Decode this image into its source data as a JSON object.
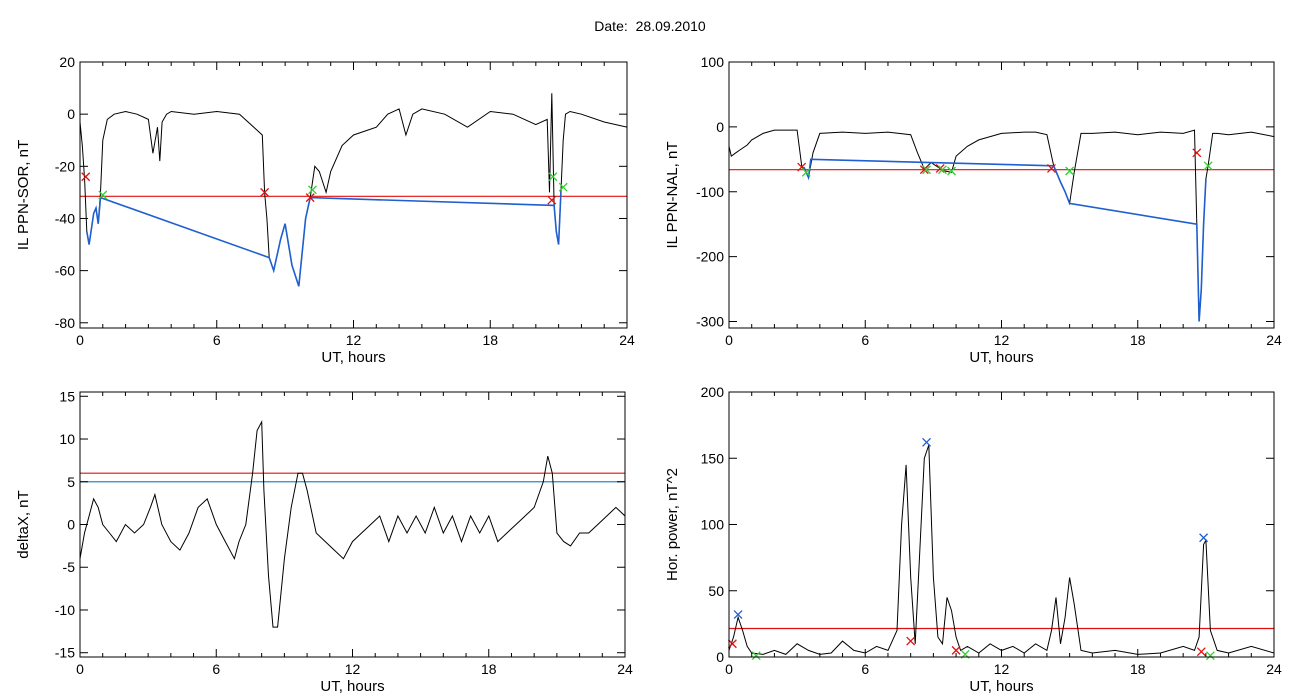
{
  "page": {
    "title": "Date:  28.09.2010"
  },
  "chart_data": [
    {
      "type": "line",
      "panel": "top-left",
      "xlabel": "UT, hours",
      "ylabel": "IL PPN-SOR, nT",
      "xlim": [
        0,
        24
      ],
      "ylim": [
        -82,
        20
      ],
      "xticks": [
        0,
        6,
        12,
        18,
        24
      ],
      "yticks": [
        20,
        0,
        -20,
        -40,
        -60,
        -80
      ],
      "series": [
        {
          "color": "#000000",
          "x": [
            0,
            0.1,
            0.2,
            0.3,
            0.4,
            0.5,
            0.6,
            0.7,
            0.8,
            0.9,
            1.0,
            1.2,
            1.5,
            2.0,
            2.5,
            3.0,
            3.2,
            3.4,
            3.5,
            3.6,
            3.8,
            4.0,
            5.0,
            6.0,
            7.0,
            8.0,
            8.1,
            8.2,
            8.3,
            8.5,
            8.8,
            9.0,
            9.3,
            9.6,
            9.9,
            10.1,
            10.3,
            10.5,
            10.8,
            11.0,
            11.5,
            12.0,
            13.0,
            13.5,
            14.0,
            14.3,
            14.6,
            15.0,
            16.0,
            17.0,
            18.0,
            19.0,
            20.0,
            20.5,
            20.6,
            20.7,
            20.8,
            20.9,
            21.0,
            21.1,
            21.2,
            21.3,
            21.5,
            22.0,
            23.0,
            24.0
          ],
          "y": [
            -3,
            -12,
            -25,
            -45,
            -50,
            -44,
            -38,
            -36,
            -42,
            -30,
            -10,
            -2,
            0,
            1,
            0,
            -2,
            -15,
            -5,
            -18,
            -3,
            0,
            1,
            0,
            1,
            0,
            -8,
            -30,
            -40,
            -55,
            -60,
            -48,
            -42,
            -58,
            -66,
            -40,
            -32,
            -20,
            -22,
            -30,
            -22,
            -12,
            -8,
            -5,
            0,
            2,
            -8,
            0,
            2,
            0,
            -5,
            1,
            0,
            -4,
            -2,
            -30,
            8,
            -35,
            -45,
            -50,
            -30,
            -10,
            0,
            1,
            0,
            -3,
            -5
          ]
        },
        {
          "color": "#1f5fd0",
          "x": [
            0.3,
            0.4,
            0.5,
            0.6,
            0.7,
            0.8,
            0.9,
            8.3,
            8.5,
            8.8,
            9.0,
            9.3,
            9.6,
            9.9,
            10.1,
            20.8,
            20.9,
            21.0,
            21.1
          ],
          "y": [
            -45,
            -50,
            -44,
            -38,
            -36,
            -42,
            -32,
            -55,
            -60,
            -48,
            -42,
            -58,
            -66,
            -40,
            -32,
            -35,
            -45,
            -50,
            -30
          ]
        }
      ],
      "hlines": [
        {
          "y": -31.5,
          "color": "#e01010"
        }
      ],
      "markers": [
        {
          "x": 0.25,
          "y": -24,
          "color": "#e01010"
        },
        {
          "x": 1.0,
          "y": -31,
          "color": "#30d030"
        },
        {
          "x": 8.1,
          "y": -30,
          "color": "#e01010"
        },
        {
          "x": 10.1,
          "y": -32,
          "color": "#e01010"
        },
        {
          "x": 10.2,
          "y": -29,
          "color": "#30d030"
        },
        {
          "x": 20.7,
          "y": -33,
          "color": "#e01010"
        },
        {
          "x": 20.75,
          "y": -24,
          "color": "#30d030"
        },
        {
          "x": 21.2,
          "y": -28,
          "color": "#30d030"
        }
      ]
    },
    {
      "type": "line",
      "panel": "top-right",
      "xlabel": "UT, hours",
      "ylabel": "IL PPN-NAL, nT",
      "xlim": [
        0,
        24
      ],
      "ylim": [
        -310,
        100
      ],
      "xticks": [
        0,
        6,
        12,
        18,
        24
      ],
      "yticks": [
        100,
        0,
        -100,
        -200,
        -300
      ],
      "series": [
        {
          "color": "#000000",
          "x": [
            0,
            0.1,
            0.3,
            0.5,
            0.8,
            1.0,
            1.5,
            2.0,
            2.5,
            3.0,
            3.2,
            3.4,
            3.5,
            3.7,
            4.0,
            5.0,
            6.0,
            7.0,
            8.0,
            8.3,
            8.6,
            8.9,
            9.2,
            9.5,
            9.8,
            10.0,
            10.5,
            11.0,
            12.0,
            13.0,
            13.5,
            14.0,
            14.3,
            14.6,
            14.8,
            15.0,
            15.2,
            15.5,
            16.0,
            17.0,
            18.0,
            19.0,
            20.0,
            20.5,
            20.6,
            20.7,
            20.8,
            20.9,
            21.0,
            21.1,
            21.3,
            21.5,
            22.0,
            23.0,
            24.0
          ],
          "y": [
            -30,
            -45,
            -40,
            -35,
            -28,
            -20,
            -10,
            -5,
            -5,
            -5,
            -60,
            -70,
            -78,
            -40,
            -10,
            -8,
            -10,
            -8,
            -12,
            -40,
            -65,
            -55,
            -62,
            -68,
            -70,
            -45,
            -30,
            -20,
            -10,
            -8,
            -8,
            -12,
            -60,
            -85,
            -100,
            -118,
            -70,
            -10,
            -10,
            -8,
            -12,
            -8,
            -10,
            -5,
            -150,
            -300,
            -250,
            -150,
            -80,
            -60,
            -10,
            -10,
            -12,
            -8,
            -15
          ]
        },
        {
          "color": "#1f5fd0",
          "x": [
            3.3,
            3.4,
            3.5,
            3.6,
            14.3,
            14.6,
            14.8,
            15.0,
            20.6,
            20.7,
            20.8,
            20.9,
            21.0
          ],
          "y": [
            -62,
            -70,
            -78,
            -50,
            -60,
            -85,
            -100,
            -118,
            -150,
            -300,
            -250,
            -150,
            -80
          ]
        }
      ],
      "hlines": [
        {
          "y": -66,
          "color": "#e01010"
        }
      ],
      "markers": [
        {
          "x": 3.2,
          "y": -62,
          "color": "#e01010"
        },
        {
          "x": 3.4,
          "y": -70,
          "color": "#30d030"
        },
        {
          "x": 8.6,
          "y": -66,
          "color": "#e01010"
        },
        {
          "x": 8.7,
          "y": -66,
          "color": "#30d030"
        },
        {
          "x": 9.3,
          "y": -64,
          "color": "#e01010"
        },
        {
          "x": 9.4,
          "y": -66,
          "color": "#30d030"
        },
        {
          "x": 9.8,
          "y": -68,
          "color": "#30d030"
        },
        {
          "x": 14.2,
          "y": -64,
          "color": "#e01010"
        },
        {
          "x": 15.0,
          "y": -68,
          "color": "#30d030"
        },
        {
          "x": 20.6,
          "y": -40,
          "color": "#e01010"
        },
        {
          "x": 21.1,
          "y": -60,
          "color": "#30d030"
        }
      ]
    },
    {
      "type": "line",
      "panel": "bottom-left",
      "xlabel": "UT, hours",
      "ylabel": "deltaX, nT",
      "xlim": [
        0,
        24
      ],
      "ylim": [
        -15.5,
        15.5
      ],
      "xticks": [
        0,
        6,
        12,
        18,
        24
      ],
      "yticks": [
        15,
        10,
        5,
        0,
        -5,
        -10,
        -15
      ],
      "series": [
        {
          "color": "#000000",
          "x": [
            0,
            0.2,
            0.4,
            0.6,
            0.8,
            1.0,
            1.3,
            1.6,
            2.0,
            2.4,
            2.8,
            3.1,
            3.3,
            3.6,
            4.0,
            4.4,
            4.8,
            5.2,
            5.6,
            6.0,
            6.4,
            6.8,
            7.0,
            7.3,
            7.6,
            7.8,
            8.0,
            8.1,
            8.3,
            8.5,
            8.7,
            9.0,
            9.3,
            9.6,
            9.8,
            10.0,
            10.4,
            10.8,
            11.2,
            11.6,
            12.0,
            12.4,
            12.8,
            13.2,
            13.6,
            14.0,
            14.4,
            14.8,
            15.2,
            15.6,
            16.0,
            16.4,
            16.8,
            17.2,
            17.6,
            18.0,
            18.4,
            18.8,
            19.2,
            19.6,
            20.0,
            20.4,
            20.6,
            20.8,
            21.0,
            21.3,
            21.6,
            22.0,
            22.4,
            22.8,
            23.2,
            23.6,
            24.0
          ],
          "y": [
            -4,
            -1,
            1,
            3,
            2,
            0,
            -1,
            -2,
            0,
            -1,
            0,
            2,
            3.5,
            0,
            -2,
            -3,
            -1,
            2,
            3,
            0,
            -2,
            -4,
            -2,
            0,
            6,
            11,
            12,
            4,
            -6,
            -12,
            -12,
            -4,
            2,
            6,
            6,
            4,
            -1,
            -2,
            -3,
            -4,
            -2,
            -1,
            0,
            1,
            -2,
            1,
            -1,
            1,
            -1,
            2,
            -1,
            1,
            -2,
            1,
            -1,
            1,
            -2,
            -1,
            0,
            1,
            2,
            5,
            8,
            6,
            -1,
            -2,
            -2.5,
            -1,
            -1,
            0,
            1,
            2,
            1
          ]
        }
      ],
      "hlines": [
        {
          "y": 6,
          "color": "#e01010"
        },
        {
          "y": 5,
          "color": "#2a8ac8"
        }
      ],
      "markers": []
    },
    {
      "type": "line",
      "panel": "bottom-right",
      "xlabel": "UT, hours",
      "ylabel": "Hor. power, nT^2",
      "xlim": [
        0,
        24
      ],
      "ylim": [
        0,
        200
      ],
      "xticks": [
        0,
        6,
        12,
        18,
        24
      ],
      "yticks": [
        200,
        150,
        100,
        50,
        0
      ],
      "series": [
        {
          "color": "#000000",
          "x": [
            0,
            0.2,
            0.4,
            0.6,
            0.8,
            1.0,
            1.5,
            2.0,
            2.5,
            3.0,
            3.5,
            4.0,
            4.5,
            5.0,
            5.5,
            6.0,
            6.5,
            7.0,
            7.4,
            7.6,
            7.8,
            8.0,
            8.2,
            8.4,
            8.6,
            8.8,
            9.0,
            9.2,
            9.4,
            9.6,
            9.8,
            10.0,
            10.2,
            10.5,
            11.0,
            11.5,
            12.0,
            12.5,
            13.0,
            13.5,
            14.0,
            14.2,
            14.4,
            14.6,
            14.8,
            15.0,
            15.2,
            15.5,
            16.0,
            17.0,
            18.0,
            19.0,
            20.0,
            20.5,
            20.7,
            20.9,
            21.0,
            21.2,
            21.5,
            22.0,
            23.0,
            24.0
          ],
          "y": [
            5,
            15,
            30,
            20,
            8,
            3,
            2,
            5,
            2,
            10,
            5,
            2,
            3,
            12,
            5,
            3,
            8,
            5,
            20,
            100,
            145,
            60,
            10,
            80,
            150,
            160,
            60,
            15,
            10,
            45,
            35,
            15,
            5,
            8,
            3,
            10,
            5,
            8,
            3,
            10,
            5,
            20,
            45,
            10,
            30,
            60,
            40,
            5,
            3,
            5,
            2,
            3,
            8,
            5,
            15,
            85,
            88,
            20,
            5,
            3,
            8,
            3
          ]
        }
      ],
      "hlines": [
        {
          "y": 21.5,
          "color": "#e01010"
        }
      ],
      "markers": [
        {
          "x": 0.15,
          "y": 10,
          "color": "#e01010"
        },
        {
          "x": 0.4,
          "y": 32,
          "color": "#1f5fd0"
        },
        {
          "x": 1.2,
          "y": 1,
          "color": "#30d030"
        },
        {
          "x": 8.0,
          "y": 12,
          "color": "#e01010"
        },
        {
          "x": 8.7,
          "y": 162,
          "color": "#1f5fd0"
        },
        {
          "x": 10.0,
          "y": 5,
          "color": "#e01010"
        },
        {
          "x": 10.4,
          "y": 2,
          "color": "#30d030"
        },
        {
          "x": 20.8,
          "y": 4,
          "color": "#e01010"
        },
        {
          "x": 20.9,
          "y": 90,
          "color": "#1f5fd0"
        },
        {
          "x": 21.2,
          "y": 1,
          "color": "#30d030"
        }
      ]
    }
  ]
}
